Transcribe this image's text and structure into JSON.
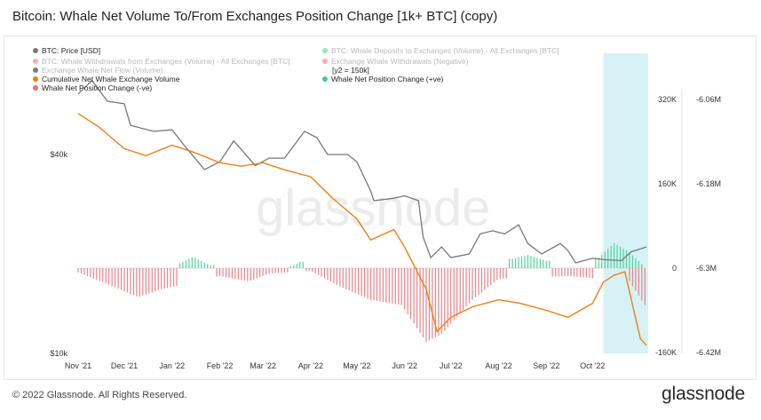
{
  "title": "Bitcoin: Whale Net Volume To/From Exchanges Position Change [1k+ BTC] (copy)",
  "footer": {
    "copyright": "© 2022 Glassnode. All Rights Reserved.",
    "logo": "glassnode"
  },
  "watermark": "glassnode",
  "colors": {
    "price": "#777777",
    "cumulative": "#f07d12",
    "positive": "#3ecf8e",
    "negative": "#ef6b73",
    "highlight": "#c9edf3"
  },
  "legend": [
    {
      "label": "BTC: Price [USD]",
      "color": "#777777",
      "faded": false
    },
    {
      "label": "BTC: Whale Deposits to Exchanges (Volume) - All Exchanges [BTC]",
      "color": "#3ecf8e",
      "faded": true
    },
    {
      "label": "BTC: Whale Withdrawals from Exchanges (Volume) - All Exchanges [BTC]",
      "color": "#ef6b73",
      "faded": true
    },
    {
      "label": "Exchange Whale Withdrawals (Negative)",
      "color": "#ef6b73",
      "faded": true
    },
    {
      "label": "Exchange Whale Net Flow (Volume)",
      "color": "#111111",
      "faded": true
    },
    {
      "label": "[y2 = 150k]",
      "color": "",
      "faded": false
    },
    {
      "label": "Cumulative Net Whale Exchange Volume",
      "color": "#f07d12",
      "faded": false
    },
    {
      "label": "Whale Net Position Change (+ve)",
      "color": "#3ecf8e",
      "faded": false
    },
    {
      "label": "Whale Net Position Change (-ve)",
      "color": "#ef6b73",
      "faded": false
    }
  ],
  "chart_data": {
    "type": "line",
    "x_ticks": [
      "Nov '21",
      "Dec '21",
      "Jan '22",
      "Feb '22",
      "Mar '22",
      "Apr '22",
      "May '22",
      "Jun '22",
      "Jul '22",
      "Aug '22",
      "Sep '22",
      "Oct '22"
    ],
    "y_left": {
      "scale": "log",
      "ticks": [
        "$40k",
        "$10k"
      ]
    },
    "y_mid": {
      "ticks": [
        "320K",
        "160K",
        "0",
        "-160K"
      ],
      "range": [
        -160000,
        320000
      ]
    },
    "y_right": {
      "ticks": [
        "-6.06M",
        "-6.18M",
        "-6.3M",
        "-6.42M"
      ],
      "range": [
        -6420000,
        -6060000
      ]
    },
    "highlight_period": [
      "Oct '22",
      "end"
    ],
    "series": [
      {
        "name": "BTC: Price [USD]",
        "axis": "left",
        "x": [
          "2021-11-01",
          "2021-11-10",
          "2021-11-20",
          "2021-12-01",
          "2021-12-05",
          "2021-12-20",
          "2022-01-01",
          "2022-01-10",
          "2022-01-22",
          "2022-02-01",
          "2022-02-10",
          "2022-02-24",
          "2022-03-05",
          "2022-03-15",
          "2022-03-28",
          "2022-04-05",
          "2022-04-12",
          "2022-04-25",
          "2022-05-01",
          "2022-05-10",
          "2022-05-12",
          "2022-05-25",
          "2022-06-01",
          "2022-06-10",
          "2022-06-13",
          "2022-06-18",
          "2022-06-25",
          "2022-07-01",
          "2022-07-13",
          "2022-07-20",
          "2022-07-28",
          "2022-08-05",
          "2022-08-14",
          "2022-08-20",
          "2022-08-29",
          "2022-09-10",
          "2022-09-15",
          "2022-09-20",
          "2022-10-01",
          "2022-10-10",
          "2022-10-20",
          "2022-10-26",
          "2022-11-05"
        ],
        "values": [
          61000,
          67000,
          58000,
          57000,
          49000,
          47000,
          47500,
          42000,
          36000,
          38000,
          44000,
          37000,
          39000,
          39000,
          47000,
          45000,
          40000,
          40000,
          38000,
          31000,
          29000,
          29500,
          30000,
          29000,
          22500,
          19500,
          21000,
          19500,
          20000,
          23000,
          23500,
          23000,
          24500,
          21500,
          20000,
          21500,
          20500,
          18800,
          19400,
          19200,
          19100,
          20300,
          21000
        ]
      },
      {
        "name": "Cumulative Net Whale Exchange Volume",
        "axis": "right",
        "x": [
          "2021-11-01",
          "2021-11-15",
          "2021-12-01",
          "2021-12-15",
          "2022-01-01",
          "2022-01-15",
          "2022-02-01",
          "2022-02-15",
          "2022-03-01",
          "2022-03-15",
          "2022-04-01",
          "2022-04-15",
          "2022-05-01",
          "2022-05-10",
          "2022-05-25",
          "2022-06-01",
          "2022-06-15",
          "2022-06-22",
          "2022-07-01",
          "2022-07-15",
          "2022-08-01",
          "2022-08-15",
          "2022-09-01",
          "2022-09-15",
          "2022-10-01",
          "2022-10-08",
          "2022-10-15",
          "2022-10-22",
          "2022-11-01",
          "2022-11-05"
        ],
        "values": [
          -6080000,
          -6100000,
          -6130000,
          -6140000,
          -6125000,
          -6135000,
          -6150000,
          -6155000,
          -6150000,
          -6160000,
          -6170000,
          -6200000,
          -6230000,
          -6260000,
          -6245000,
          -6270000,
          -6330000,
          -6390000,
          -6370000,
          -6355000,
          -6345000,
          -6350000,
          -6360000,
          -6370000,
          -6350000,
          -6320000,
          -6310000,
          -6305000,
          -6400000,
          -6410000
        ]
      },
      {
        "name": "Whale Net Position Change (+ve)",
        "axis": "mid",
        "x": [
          "2022-01-05",
          "2022-01-15",
          "2022-01-25",
          "2022-03-20",
          "2022-03-25",
          "2022-08-10",
          "2022-08-20",
          "2022-09-01",
          "2022-10-05",
          "2022-10-15",
          "2022-10-25",
          "2022-11-02"
        ],
        "values": [
          8000,
          22000,
          6000,
          4000,
          12000,
          18000,
          25000,
          14000,
          20000,
          48000,
          30000,
          8000
        ]
      },
      {
        "name": "Whale Net Position Change (-ve)",
        "axis": "mid",
        "x": [
          "2021-11-01",
          "2021-11-20",
          "2021-12-10",
          "2021-12-25",
          "2022-02-01",
          "2022-02-20",
          "2022-03-05",
          "2022-04-01",
          "2022-04-20",
          "2022-05-10",
          "2022-05-30",
          "2022-06-15",
          "2022-06-25",
          "2022-07-15",
          "2022-08-01",
          "2022-09-15",
          "2022-10-25",
          "2022-11-05"
        ],
        "values": [
          -8000,
          -30000,
          -55000,
          -40000,
          -15000,
          -25000,
          -10000,
          -5000,
          -35000,
          -60000,
          -70000,
          -140000,
          -125000,
          -60000,
          -20000,
          -15000,
          -25000,
          -75000
        ]
      }
    ]
  }
}
